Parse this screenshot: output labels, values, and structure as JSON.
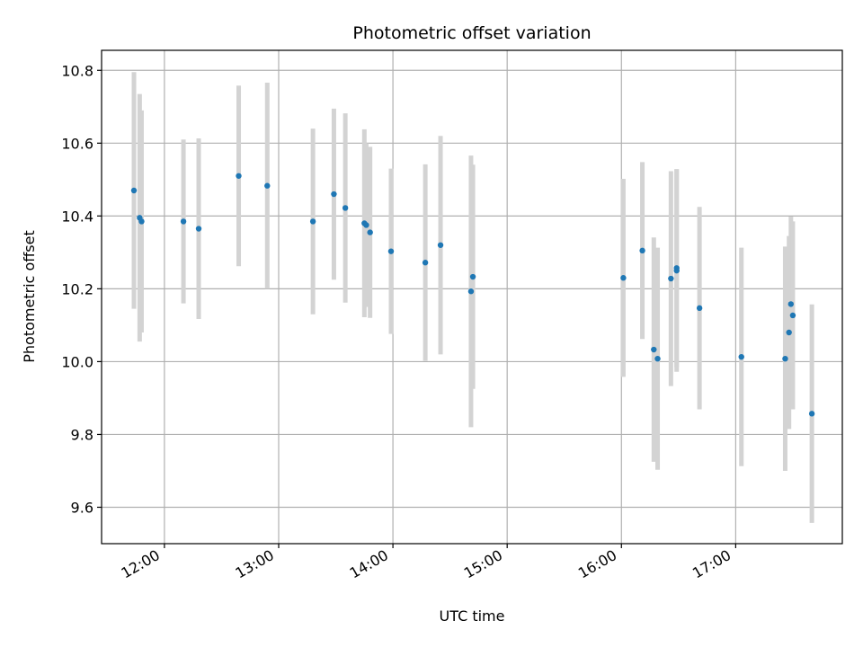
{
  "chart_data": {
    "type": "scatter",
    "title": "Photometric offset variation",
    "xlabel": "UTC time",
    "ylabel": "Photometric offset",
    "x_is_time": true,
    "xlim": [
      "11:27",
      "17:56"
    ],
    "ylim": [
      9.5,
      10.855
    ],
    "x_ticks": [
      "12:00",
      "13:00",
      "14:00",
      "15:00",
      "16:00",
      "17:00"
    ],
    "y_ticks": [
      9.6,
      9.8,
      10.0,
      10.2,
      10.4,
      10.6,
      10.8
    ],
    "grid": true,
    "marker_color": "#1f77b4",
    "errorbar_color": "#d3d3d3",
    "points": [
      {
        "t": "11:44",
        "y": 10.47,
        "err": 0.325
      },
      {
        "t": "11:47",
        "y": 10.395,
        "err": 0.34
      },
      {
        "t": "11:48",
        "y": 10.385,
        "err": 0.305
      },
      {
        "t": "12:10",
        "y": 10.385,
        "err": 0.225
      },
      {
        "t": "12:18",
        "y": 10.365,
        "err": 0.248
      },
      {
        "t": "12:39",
        "y": 10.51,
        "err": 0.248
      },
      {
        "t": "12:54",
        "y": 10.483,
        "err": 0.283
      },
      {
        "t": "13:18",
        "y": 10.385,
        "err": 0.255
      },
      {
        "t": "13:29",
        "y": 10.46,
        "err": 0.235
      },
      {
        "t": "13:35",
        "y": 10.422,
        "err": 0.26
      },
      {
        "t": "13:45",
        "y": 10.38,
        "err": 0.258
      },
      {
        "t": "13:46",
        "y": 10.375,
        "err": 0.225
      },
      {
        "t": "13:48",
        "y": 10.355,
        "err": 0.235
      },
      {
        "t": "13:59",
        "y": 10.303,
        "err": 0.227
      },
      {
        "t": "14:17",
        "y": 10.272,
        "err": 0.27
      },
      {
        "t": "14:25",
        "y": 10.32,
        "err": 0.3
      },
      {
        "t": "14:41",
        "y": 10.193,
        "err": 0.373
      },
      {
        "t": "14:42",
        "y": 10.233,
        "err": 0.308
      },
      {
        "t": "16:01",
        "y": 10.23,
        "err": 0.272
      },
      {
        "t": "16:11",
        "y": 10.305,
        "err": 0.243
      },
      {
        "t": "16:17",
        "y": 10.033,
        "err": 0.308
      },
      {
        "t": "16:19",
        "y": 10.008,
        "err": 0.305
      },
      {
        "t": "16:26",
        "y": 10.228,
        "err": 0.295
      },
      {
        "t": "16:29",
        "y": 10.25,
        "err": 0.278
      },
      {
        "t": "16:29",
        "y": 10.257,
        "err": 0.272
      },
      {
        "t": "16:41",
        "y": 10.147,
        "err": 0.278
      },
      {
        "t": "17:03",
        "y": 10.013,
        "err": 0.3
      },
      {
        "t": "17:26",
        "y": 10.008,
        "err": 0.308
      },
      {
        "t": "17:28",
        "y": 10.08,
        "err": 0.265
      },
      {
        "t": "17:29",
        "y": 10.158,
        "err": 0.24
      },
      {
        "t": "17:30",
        "y": 10.127,
        "err": 0.258
      },
      {
        "t": "17:40",
        "y": 9.857,
        "err": 0.3
      }
    ]
  }
}
